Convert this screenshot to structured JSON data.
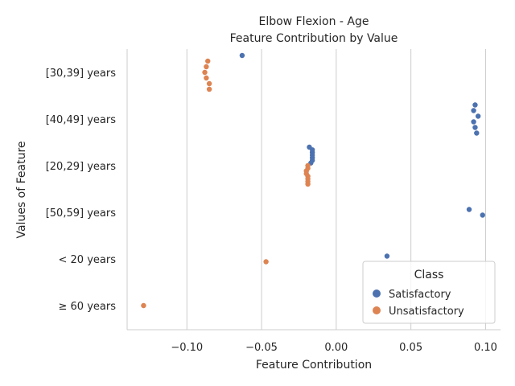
{
  "chart_data": {
    "type": "scatter",
    "title": "Elbow Flexion - Age",
    "subtitle": "Feature Contribution by Value",
    "xlabel": "Feature Contribution",
    "ylabel": "Values of Feature",
    "xlim": [
      -0.14,
      0.11
    ],
    "x_ticks": [
      -0.1,
      -0.05,
      0.0,
      0.05,
      0.1
    ],
    "x_tick_labels": [
      "−0.10",
      "−0.05",
      "0.00",
      "0.05",
      "0.10"
    ],
    "categories": [
      "[30,39] years",
      "[40,49] years",
      "[20,29] years",
      "[50,59] years",
      "< 20 years",
      "≥ 60 years"
    ],
    "grid": "vertical",
    "legend": {
      "title": "Class",
      "placement": "bottom-right",
      "entries": [
        {
          "label": "Satisfactory",
          "color": "#4c72b0"
        },
        {
          "label": "Unsatisfactory",
          "color": "#dd8452"
        }
      ]
    },
    "series": [
      {
        "name": "Satisfactory",
        "color": "#4c72b0",
        "points": [
          {
            "category": "[30,39] years",
            "x": -0.063
          },
          {
            "category": "[40,49] years",
            "x": 0.093
          },
          {
            "category": "[40,49] years",
            "x": 0.092
          },
          {
            "category": "[40,49] years",
            "x": 0.095
          },
          {
            "category": "[40,49] years",
            "x": 0.092
          },
          {
            "category": "[40,49] years",
            "x": 0.093
          },
          {
            "category": "[40,49] years",
            "x": 0.094
          },
          {
            "category": "[20,29] years",
            "x": -0.018
          },
          {
            "category": "[20,29] years",
            "x": -0.016
          },
          {
            "category": "[20,29] years",
            "x": -0.016
          },
          {
            "category": "[20,29] years",
            "x": -0.016
          },
          {
            "category": "[20,29] years",
            "x": -0.016
          },
          {
            "category": "[20,29] years",
            "x": -0.016
          },
          {
            "category": "[20,29] years",
            "x": -0.017
          },
          {
            "category": "[50,59] years",
            "x": 0.089
          },
          {
            "category": "[50,59] years",
            "x": 0.098
          },
          {
            "category": "< 20 years",
            "x": 0.034
          }
        ]
      },
      {
        "name": "Unsatisfactory",
        "color": "#dd8452",
        "points": [
          {
            "category": "[30,39] years",
            "x": -0.086
          },
          {
            "category": "[30,39] years",
            "x": -0.087
          },
          {
            "category": "[30,39] years",
            "x": -0.088
          },
          {
            "category": "[30,39] years",
            "x": -0.087
          },
          {
            "category": "[30,39] years",
            "x": -0.085
          },
          {
            "category": "[30,39] years",
            "x": -0.085
          },
          {
            "category": "[20,29] years",
            "x": -0.019
          },
          {
            "category": "[20,29] years",
            "x": -0.019
          },
          {
            "category": "[20,29] years",
            "x": -0.02
          },
          {
            "category": "[20,29] years",
            "x": -0.02
          },
          {
            "category": "[20,29] years",
            "x": -0.019
          },
          {
            "category": "[20,29] years",
            "x": -0.019
          },
          {
            "category": "[20,29] years",
            "x": -0.019
          },
          {
            "category": "[20,29] years",
            "x": -0.019
          },
          {
            "category": "< 20 years",
            "x": -0.047
          },
          {
            "category": "≥ 60 years",
            "x": -0.129
          }
        ]
      }
    ]
  }
}
